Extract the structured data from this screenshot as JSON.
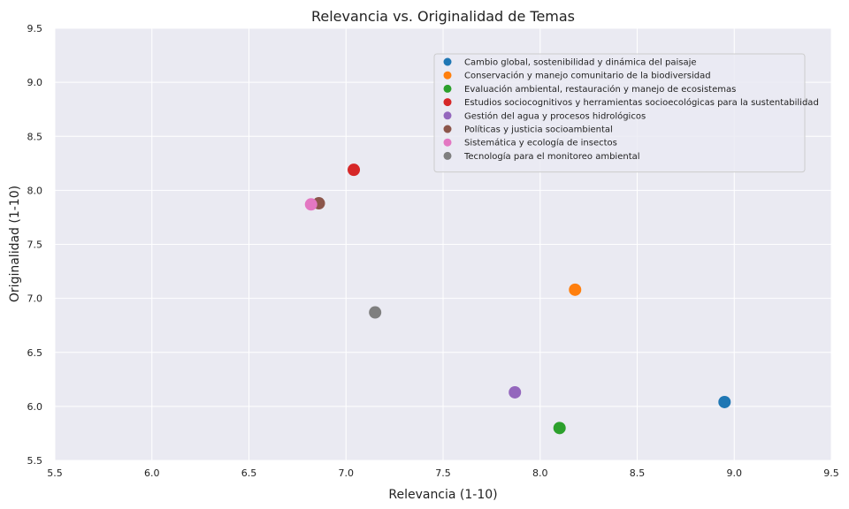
{
  "chart_data": {
    "type": "scatter",
    "title": "Relevancia vs. Originalidad de Temas",
    "xlabel": "Relevancia (1-10)",
    "ylabel": "Originalidad (1-10)",
    "xlim": [
      5.5,
      9.5
    ],
    "ylim": [
      5.5,
      9.5
    ],
    "xticks": [
      "5.5",
      "6.0",
      "6.5",
      "7.0",
      "7.5",
      "8.0",
      "8.5",
      "9.0",
      "9.5"
    ],
    "yticks": [
      "5.5",
      "6.0",
      "6.5",
      "7.0",
      "7.5",
      "8.0",
      "8.5",
      "9.0",
      "9.5"
    ],
    "grid": true,
    "legend_position": "top-right",
    "series": [
      {
        "name": "Cambio global, sostenibilidad y dinámica del paisaje",
        "color": "#1f77b4",
        "x": 8.95,
        "y": 6.04
      },
      {
        "name": "Conservación y manejo comunitario de la biodiversidad",
        "color": "#ff7f0e",
        "x": 8.18,
        "y": 7.08
      },
      {
        "name": "Evaluación ambiental, restauración y manejo de ecosistemas",
        "color": "#2ca02c",
        "x": 8.1,
        "y": 5.8
      },
      {
        "name": "Estudios sociocognitivos y herramientas socioecológicas para la sustentabilidad",
        "color": "#d62728",
        "x": 7.04,
        "y": 8.19
      },
      {
        "name": "Gestión del agua y procesos hidrológicos",
        "color": "#9467bd",
        "x": 7.87,
        "y": 6.13
      },
      {
        "name": "Políticas y justicia socioambiental",
        "color": "#8c564b",
        "x": 6.86,
        "y": 7.88
      },
      {
        "name": "Sistemática y ecología de insectos",
        "color": "#e377c2",
        "x": 6.82,
        "y": 7.87
      },
      {
        "name": "Tecnología para el monitoreo ambiental",
        "color": "#7f7f7f",
        "x": 7.15,
        "y": 6.87
      }
    ]
  }
}
